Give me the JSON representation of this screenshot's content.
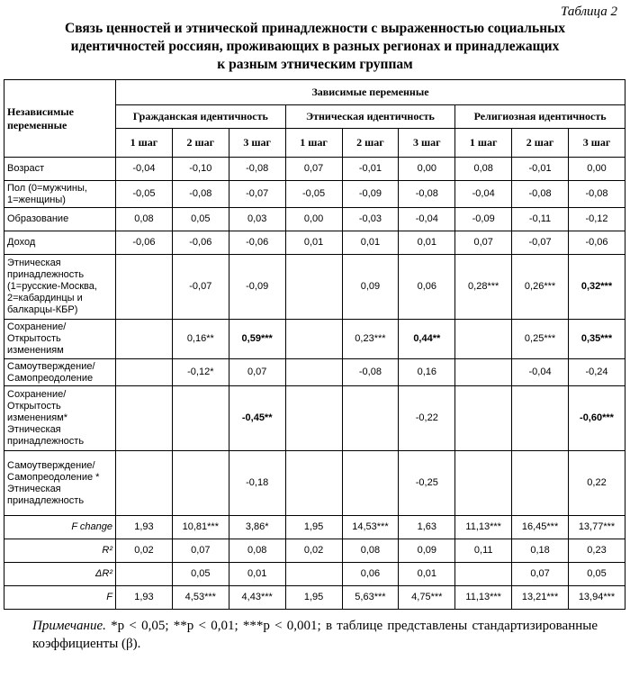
{
  "table_number": "Таблица 2",
  "title_lines": [
    "Связь ценностей и этнической принадлежности с выраженностью социальных",
    "идентичностей россиян, проживающих в разных регионах и принадлежащих",
    "к разным этническим группам"
  ],
  "header": {
    "independent": "Независимые переменные",
    "dependent": "Зависимые переменные",
    "groups": [
      "Гражданская идентичность",
      "Этническая идентичность",
      "Религиозная идентичность"
    ],
    "steps": [
      "1 шаг",
      "2 шаг",
      "3 шаг",
      "1 шаг",
      "2 шаг",
      "3 шаг",
      "1 шаг",
      "2 шаг",
      "3 шаг"
    ]
  },
  "rows": [
    {
      "label": "Возраст",
      "cells": [
        "-0,04",
        "-0,10",
        "-0,08",
        "0,07",
        "-0,01",
        "0,00",
        "0,08",
        "-0,01",
        "0,00"
      ]
    },
    {
      "label": "Пол (0=мужчины, 1=женщины)",
      "cells": [
        "-0,05",
        "-0,08",
        "-0,07",
        "-0,05",
        "-0,09",
        "-0,08",
        "-0,04",
        "-0,08",
        "-0,08"
      ]
    },
    {
      "label": "Образование",
      "cells": [
        "0,08",
        "0,05",
        "0,03",
        "0,00",
        "-0,03",
        "-0,04",
        "-0,09",
        "-0,11",
        "-0,12"
      ]
    },
    {
      "label": "Доход",
      "cells": [
        "-0,06",
        "-0,06",
        "-0,06",
        "0,01",
        "0,01",
        "0,01",
        "0,07",
        "-0,07",
        "-0,06"
      ]
    },
    {
      "label": "Этническая принадлежность (1=русские-Москва, 2=кабардинцы и балкарцы-КБР)",
      "cells": [
        "",
        "-0,07",
        "-0,09",
        "",
        "0,09",
        "0,06",
        "0,28***",
        "0,26***",
        "0,32***"
      ],
      "bold": [
        8
      ]
    },
    {
      "label": "Сохранение/ Открытость изменениям",
      "cells": [
        "",
        "0,16**",
        "0,59***",
        "",
        "0,23***",
        "0,44**",
        "",
        "0,25***",
        "0,35***"
      ],
      "bold": [
        2,
        5,
        8
      ]
    },
    {
      "label": "Самоутверждение/ Самопреодоление",
      "cells": [
        "",
        "-0,12*",
        "0,07",
        "",
        "-0,08",
        "0,16",
        "",
        "-0,04",
        "-0,24"
      ]
    },
    {
      "label": "Сохранение/ Открытость изменениям* Этническая принадлежность",
      "cells": [
        "",
        "",
        "-0,45**",
        "",
        "",
        "-0,22",
        "",
        "",
        "-0,60***"
      ],
      "bold": [
        2,
        8
      ]
    },
    {
      "label": "Самоутверждение/ Самопреодоление * Этническая принадлежность",
      "cells": [
        "",
        "",
        "-0,18",
        "",
        "",
        "-0,25",
        "",
        "",
        "0,22"
      ]
    },
    {
      "label": "F change",
      "stat": true,
      "cells": [
        "1,93",
        "10,81***",
        "3,86*",
        "1,95",
        "14,53***",
        "1,63",
        "11,13***",
        "16,45***",
        "13,77***"
      ]
    },
    {
      "label": "R²",
      "stat": true,
      "cells": [
        "0,02",
        "0,07",
        "0,08",
        "0,02",
        "0,08",
        "0,09",
        "0,11",
        "0,18",
        "0,23"
      ]
    },
    {
      "label": "ΔR²",
      "stat": true,
      "cells": [
        "",
        "0,05",
        "0,01",
        "",
        "0,06",
        "0,01",
        "",
        "0,07",
        "0,05"
      ]
    },
    {
      "label": "F",
      "stat": true,
      "cells": [
        "1,93",
        "4,53***",
        "4,43***",
        "1,95",
        "5,63***",
        "4,75***",
        "11,13***",
        "13,21***",
        "13,94***"
      ]
    }
  ],
  "note": {
    "label": "Примечание.",
    "text": " *p < 0,05; **p < 0,01; ***p < 0,001; в таблице представлены стандартизированные коэффициенты (β)."
  }
}
